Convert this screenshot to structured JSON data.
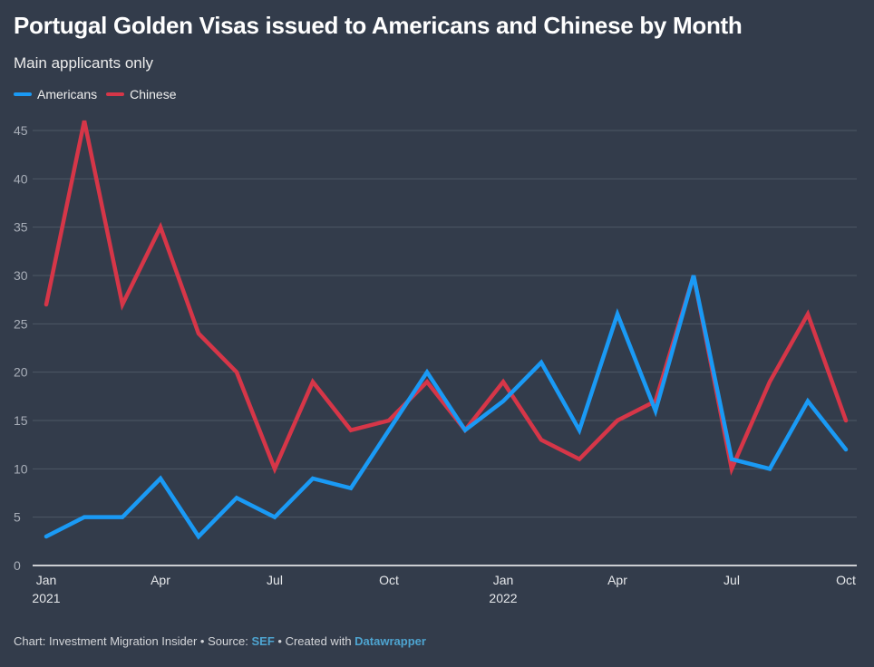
{
  "title": "Portugal Golden Visas issued to Americans and Chinese by Month",
  "subtitle": "Main applicants only",
  "footer": {
    "prefix": "Chart: Investment Migration Insider • Source: ",
    "source": "SEF",
    "middle": " • Created with ",
    "tool": "Datawrapper"
  },
  "chart_data": {
    "type": "line",
    "title": "Portugal Golden Visas issued to Americans and Chinese by Month",
    "subtitle": "Main applicants only",
    "xlabel": "",
    "ylabel": "",
    "ylim": [
      0,
      45
    ],
    "yticks": [
      0,
      5,
      10,
      15,
      20,
      25,
      30,
      35,
      40,
      45
    ],
    "grid": true,
    "legend_position": "top-left",
    "x": [
      "2021-01",
      "2021-02",
      "2021-03",
      "2021-04",
      "2021-05",
      "2021-06",
      "2021-07",
      "2021-08",
      "2021-09",
      "2021-10",
      "2021-11",
      "2021-12",
      "2022-01",
      "2022-02",
      "2022-03",
      "2022-04",
      "2022-05",
      "2022-06",
      "2022-07",
      "2022-08",
      "2022-09",
      "2022-10"
    ],
    "xticks": [
      {
        "index": 0,
        "label": "Jan",
        "sub": "2021"
      },
      {
        "index": 3,
        "label": "Apr",
        "sub": ""
      },
      {
        "index": 6,
        "label": "Jul",
        "sub": ""
      },
      {
        "index": 9,
        "label": "Oct",
        "sub": ""
      },
      {
        "index": 12,
        "label": "Jan",
        "sub": "2022"
      },
      {
        "index": 15,
        "label": "Apr",
        "sub": ""
      },
      {
        "index": 18,
        "label": "Jul",
        "sub": ""
      },
      {
        "index": 21,
        "label": "Oct",
        "sub": ""
      }
    ],
    "series": [
      {
        "name": "Americans",
        "color": "#1a9af5",
        "values": [
          3,
          5,
          5,
          9,
          3,
          7,
          5,
          9,
          8,
          14,
          20,
          14,
          17,
          21,
          14,
          26,
          16,
          30,
          11,
          10,
          17,
          12
        ]
      },
      {
        "name": "Chinese",
        "color": "#d63648",
        "values": [
          27,
          46,
          27,
          35,
          24,
          20,
          10,
          19,
          14,
          15,
          19,
          14,
          19,
          13,
          11,
          15,
          17,
          30,
          10,
          19,
          26,
          15
        ]
      }
    ]
  }
}
